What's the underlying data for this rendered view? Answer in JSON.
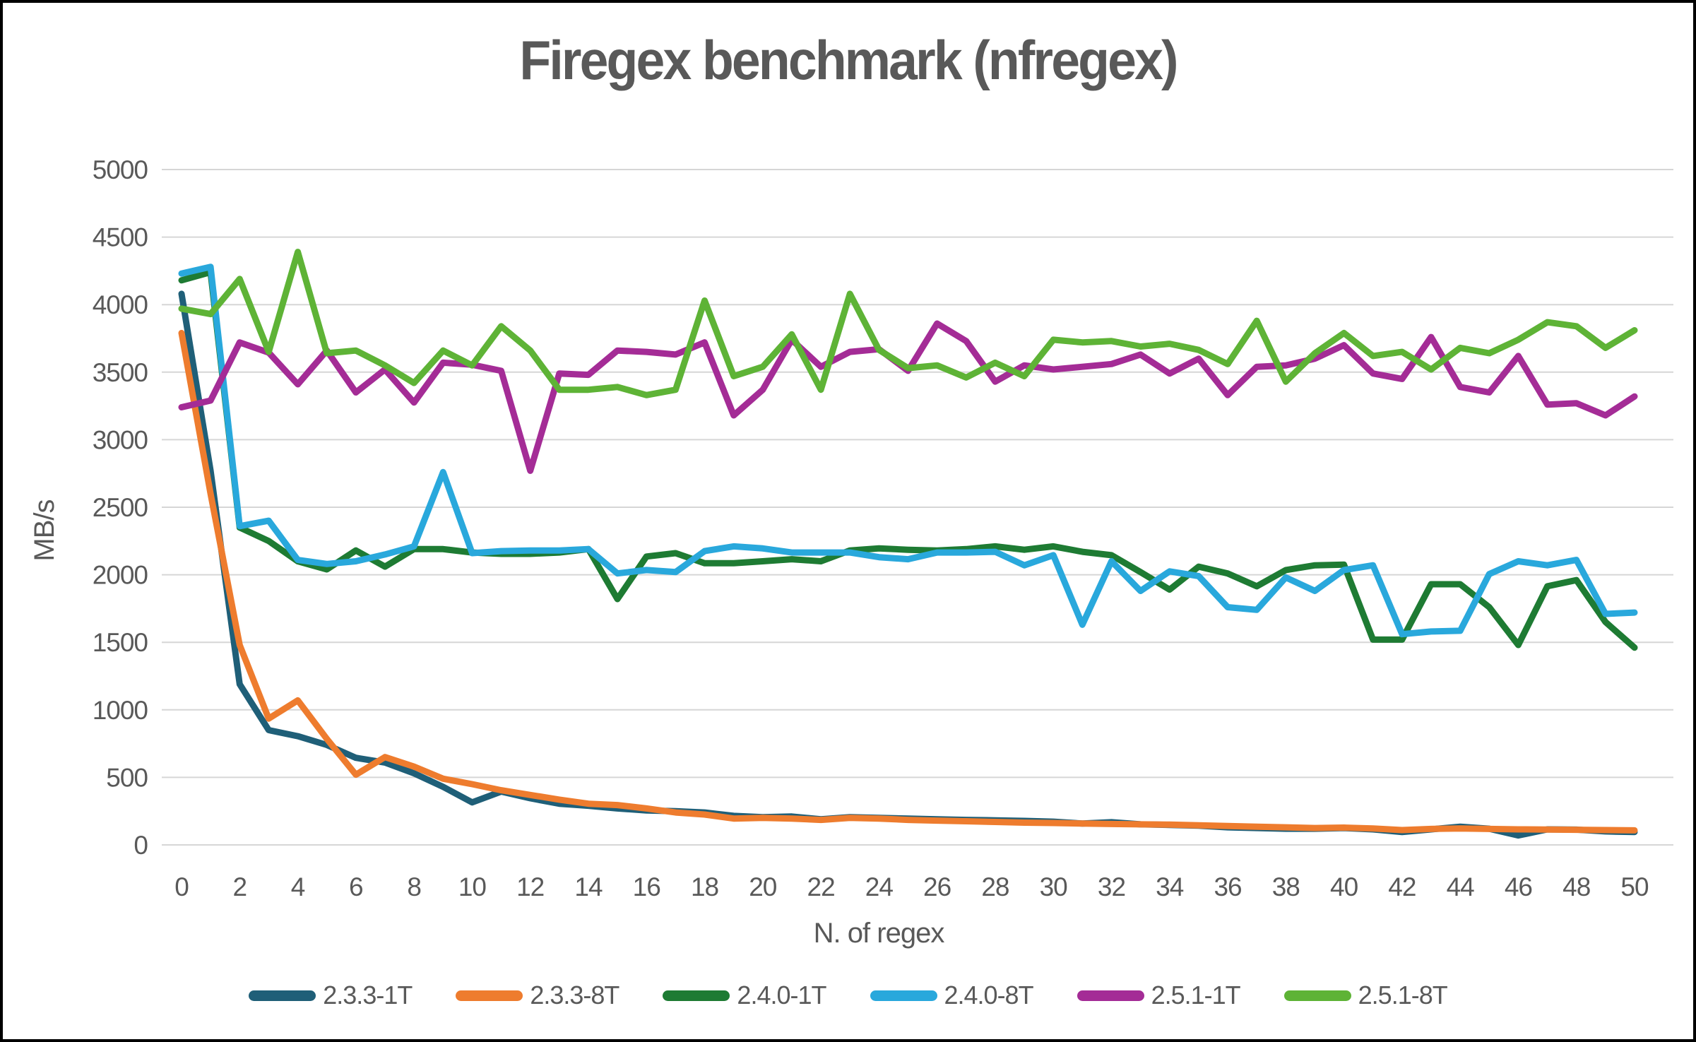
{
  "title": "Firegex benchmark (nfregex)",
  "colors": {
    "text": "#595959",
    "gridline": "#D6D6D6",
    "background": "#FFFFFF",
    "border": "#000000",
    "series_teal": "#1F5F78",
    "series_orange": "#EE7C2E",
    "series_dark_green": "#1E7B33",
    "series_light_blue": "#29A8DC",
    "series_purple": "#A42C96",
    "series_light_green": "#5EB336"
  },
  "y_axis": {
    "label": "MB/s",
    "min": 0,
    "max": 5000,
    "tick_step": 500,
    "ticks": [
      0,
      500,
      1000,
      1500,
      2000,
      2500,
      3000,
      3500,
      4000,
      4500,
      5000
    ]
  },
  "x_axis": {
    "label": "N. of regex",
    "min": 0,
    "max": 50,
    "tick_step": 2,
    "ticks": [
      0,
      2,
      4,
      6,
      8,
      10,
      12,
      14,
      16,
      18,
      20,
      22,
      24,
      26,
      28,
      30,
      32,
      34,
      36,
      38,
      40,
      42,
      44,
      46,
      48,
      50
    ]
  },
  "legend": {
    "position": "bottom",
    "items": [
      {
        "label": "2.3.3-1T",
        "color": "#1F5F78"
      },
      {
        "label": "2.3.3-8T",
        "color": "#EE7C2E"
      },
      {
        "label": "2.4.0-1T",
        "color": "#1E7B33"
      },
      {
        "label": "2.4.0-8T",
        "color": "#29A8DC"
      },
      {
        "label": "2.5.1-1T",
        "color": "#A42C96"
      },
      {
        "label": "2.5.1-8T",
        "color": "#5EB336"
      }
    ]
  },
  "chart_data": {
    "type": "line",
    "title": "Firegex benchmark (nfregex)",
    "xlabel": "N. of regex",
    "ylabel": "MB/s",
    "xlim": [
      0,
      50
    ],
    "ylim": [
      0,
      5000
    ],
    "grid": "horizontal",
    "legend_position": "bottom",
    "x": [
      0,
      1,
      2,
      3,
      4,
      5,
      6,
      7,
      8,
      9,
      10,
      11,
      12,
      13,
      14,
      15,
      16,
      17,
      18,
      19,
      20,
      21,
      22,
      23,
      24,
      25,
      26,
      27,
      28,
      29,
      30,
      31,
      32,
      33,
      34,
      35,
      36,
      37,
      38,
      39,
      40,
      41,
      42,
      43,
      44,
      45,
      46,
      47,
      48,
      49,
      50
    ],
    "series": [
      {
        "name": "2.3.3-1T",
        "color": "#1F5F78",
        "values": [
          4080,
          2770,
          1190,
          850,
          805,
          740,
          645,
          610,
          530,
          430,
          315,
          395,
          345,
          305,
          290,
          270,
          255,
          250,
          240,
          215,
          205,
          210,
          190,
          205,
          200,
          195,
          190,
          185,
          182,
          178,
          172,
          158,
          168,
          152,
          148,
          143,
          130,
          125,
          120,
          120,
          125,
          115,
          95,
          115,
          135,
          120,
          70,
          115,
          113,
          100,
          95
        ]
      },
      {
        "name": "2.3.3-8T",
        "color": "#EE7C2E",
        "values": [
          3790,
          2600,
          1480,
          935,
          1070,
          785,
          520,
          650,
          580,
          490,
          450,
          405,
          370,
          335,
          305,
          295,
          270,
          240,
          225,
          195,
          200,
          195,
          185,
          200,
          195,
          185,
          180,
          175,
          170,
          165,
          162,
          158,
          155,
          152,
          150,
          145,
          140,
          135,
          130,
          125,
          128,
          122,
          110,
          118,
          122,
          118,
          115,
          114,
          112,
          110,
          108
        ]
      },
      {
        "name": "2.4.0-1T",
        "color": "#1E7B33",
        "values": [
          4180,
          4240,
          2350,
          2250,
          2100,
          2040,
          2180,
          2060,
          2190,
          2190,
          2165,
          2155,
          2155,
          2165,
          2190,
          1820,
          2135,
          2160,
          2085,
          2085,
          2100,
          2115,
          2100,
          2180,
          2195,
          2185,
          2180,
          2190,
          2210,
          2185,
          2210,
          2170,
          2145,
          2020,
          1890,
          2060,
          2010,
          1915,
          2035,
          2070,
          2075,
          1520,
          1520,
          1930,
          1930,
          1760,
          1480,
          1915,
          1960,
          1650,
          1460
        ]
      },
      {
        "name": "2.4.0-8T",
        "color": "#29A8DC",
        "values": [
          4230,
          4280,
          2360,
          2400,
          2110,
          2080,
          2100,
          2150,
          2210,
          2760,
          2160,
          2175,
          2180,
          2180,
          2190,
          2010,
          2035,
          2020,
          2175,
          2210,
          2195,
          2165,
          2165,
          2165,
          2130,
          2115,
          2165,
          2165,
          2170,
          2070,
          2145,
          1630,
          2100,
          1880,
          2025,
          1990,
          1760,
          1740,
          1980,
          1880,
          2035,
          2070,
          1560,
          1580,
          1585,
          2005,
          2100,
          2070,
          2110,
          1710,
          1720
        ]
      },
      {
        "name": "2.5.1-1T",
        "color": "#A42C96",
        "values": [
          3240,
          3290,
          3720,
          3645,
          3410,
          3660,
          3350,
          3520,
          3275,
          3570,
          3555,
          3510,
          2770,
          3490,
          3480,
          3660,
          3650,
          3630,
          3720,
          3180,
          3370,
          3740,
          3540,
          3650,
          3670,
          3510,
          3860,
          3730,
          3430,
          3550,
          3520,
          3540,
          3560,
          3630,
          3490,
          3600,
          3330,
          3540,
          3550,
          3600,
          3700,
          3490,
          3450,
          3760,
          3390,
          3350,
          3620,
          3260,
          3270,
          3180,
          3320
        ]
      },
      {
        "name": "2.5.1-8T",
        "color": "#5EB336",
        "values": [
          3970,
          3930,
          4190,
          3650,
          4390,
          3640,
          3660,
          3550,
          3420,
          3660,
          3550,
          3840,
          3660,
          3370,
          3370,
          3390,
          3330,
          3370,
          4030,
          3470,
          3540,
          3780,
          3370,
          4080,
          3665,
          3530,
          3550,
          3460,
          3570,
          3470,
          3740,
          3720,
          3730,
          3690,
          3710,
          3665,
          3560,
          3880,
          3430,
          3640,
          3790,
          3620,
          3650,
          3520,
          3680,
          3640,
          3740,
          3870,
          3840,
          3680,
          3810
        ]
      }
    ]
  }
}
